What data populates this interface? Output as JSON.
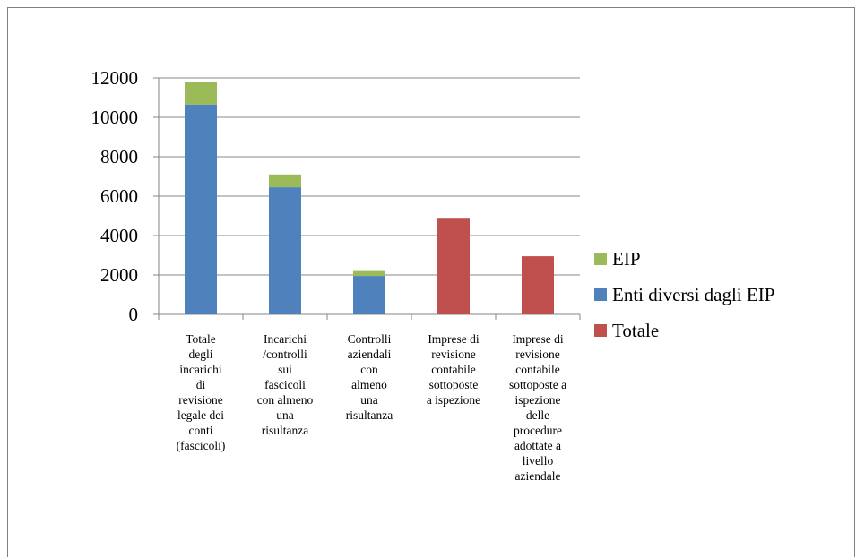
{
  "chart_data": {
    "type": "bar",
    "stacked": true,
    "categories": [
      "Totale degli incarichi di revisione legale dei conti (fascicoli)",
      "Incarichi /controlli sui fascicoli con almeno una risultanza",
      "Controlli aziendali con almeno una risultanza",
      "Imprese di revisione contabile sottoposte a ispezione",
      "Imprese di revisione contabile sottoposte a ispezione delle procedure adottate a livello aziendale"
    ],
    "category_lines": [
      [
        "Totale",
        "degli",
        "incarichi",
        "di",
        "revisione",
        "legale dei",
        "conti",
        "(fascicoli)"
      ],
      [
        "Incarichi",
        "/controlli",
        "sui",
        "fascicoli",
        "con almeno",
        "una",
        "risultanza"
      ],
      [
        "Controlli",
        "aziendali",
        "con",
        "almeno",
        "una",
        "risultanza"
      ],
      [
        "Imprese di",
        "revisione",
        "contabile",
        "sottoposte",
        "a ispezione"
      ],
      [
        "Imprese di",
        "revisione",
        "contabile",
        "sottoposte a",
        "ispezione",
        "delle",
        "procedure",
        "adottate a",
        "livello",
        "aziendale"
      ]
    ],
    "series": [
      {
        "name": "Enti diversi dagli EIP",
        "color": "#4f81bd",
        "values": [
          10650,
          6450,
          1950,
          0,
          0
        ]
      },
      {
        "name": "EIP",
        "color": "#9bbb59",
        "values": [
          1150,
          650,
          250,
          0,
          0
        ]
      },
      {
        "name": "Totale",
        "color": "#c0504d",
        "values": [
          0,
          0,
          0,
          4900,
          2950
        ]
      }
    ],
    "legend_order": [
      "EIP",
      "Enti diversi dagli EIP",
      "Totale"
    ],
    "legend_position": "right",
    "ylim": [
      0,
      12000
    ],
    "yticks": [
      0,
      2000,
      4000,
      6000,
      8000,
      10000,
      12000
    ],
    "grid": true,
    "title": "",
    "xlabel": "",
    "ylabel": ""
  }
}
